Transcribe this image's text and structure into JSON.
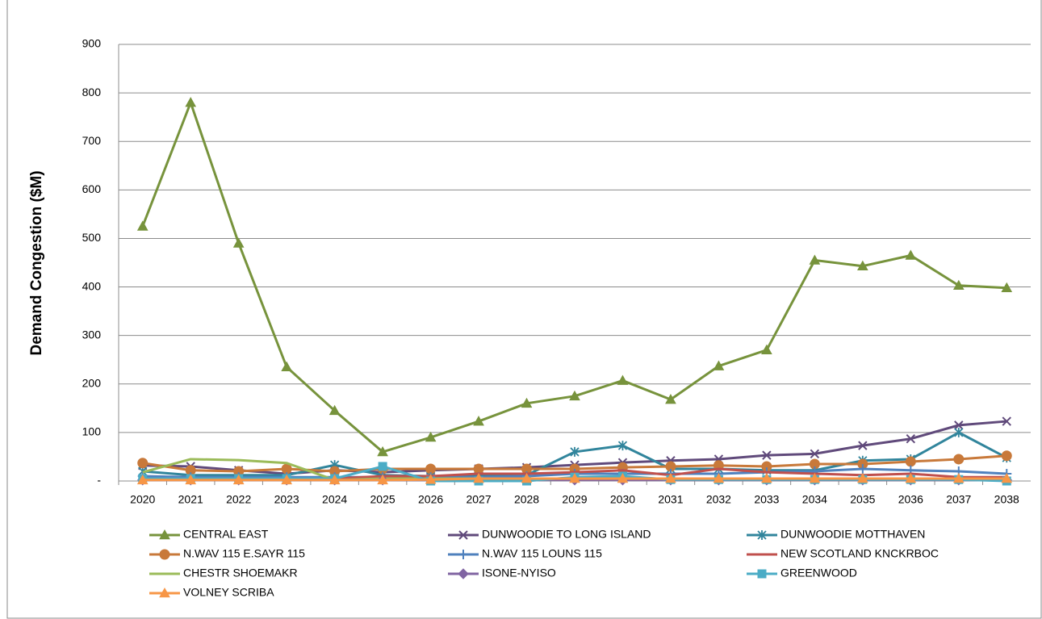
{
  "chart_data": {
    "type": "line",
    "y_label": "Demand Congestion ($M)",
    "categories": [
      "2020",
      "2021",
      "2022",
      "2023",
      "2024",
      "2025",
      "2026",
      "2027",
      "2028",
      "2029",
      "2030",
      "2031",
      "2032",
      "2033",
      "2034",
      "2035",
      "2036",
      "2037",
      "2038"
    ],
    "ylim": [
      0,
      900
    ],
    "yticks": [
      {
        "value": 0,
        "label": "-"
      },
      100,
      200,
      300,
      400,
      500,
      600,
      700,
      800,
      900
    ],
    "grid": true,
    "legend": "bottom",
    "series": [
      {
        "name": "CENTRAL EAST",
        "color": "#77933c",
        "marker": "triangle",
        "values": [
          525,
          780,
          490,
          235,
          145,
          60,
          90,
          123,
          160,
          175,
          207,
          168,
          237,
          270,
          455,
          443,
          465,
          403,
          398
        ]
      },
      {
        "name": "DUNWOODIE TO LONG ISLAND",
        "color": "#604a7b",
        "marker": "x",
        "values": [
          32,
          30,
          22,
          15,
          22,
          18,
          22,
          25,
          28,
          33,
          38,
          42,
          45,
          53,
          56,
          73,
          87,
          115,
          123
        ]
      },
      {
        "name": "DUNWOODIE MOTTHAVEN",
        "color": "#31859c",
        "marker": "star",
        "values": [
          20,
          12,
          12,
          12,
          33,
          12,
          10,
          10,
          12,
          60,
          73,
          25,
          25,
          22,
          22,
          42,
          45,
          100,
          48
        ]
      },
      {
        "name": "N.WAV 115 E.SAYR  115",
        "color": "#c8793a",
        "marker": "circle",
        "values": [
          37,
          22,
          20,
          25,
          20,
          25,
          25,
          25,
          25,
          25,
          28,
          30,
          32,
          30,
          35,
          35,
          40,
          45,
          52
        ]
      },
      {
        "name": "N.WAV 115 LOUNS 115",
        "color": "#4f81bd",
        "marker": "plus",
        "values": [
          10,
          8,
          8,
          8,
          8,
          8,
          8,
          8,
          10,
          15,
          15,
          15,
          15,
          18,
          20,
          25,
          22,
          20,
          15
        ]
      },
      {
        "name": "NEW SCOTLAND KNCKRBOC",
        "color": "#c0504d",
        "marker": "none",
        "values": [
          5,
          5,
          5,
          5,
          5,
          10,
          10,
          15,
          15,
          18,
          22,
          12,
          25,
          18,
          15,
          12,
          15,
          8,
          8
        ]
      },
      {
        "name": "CHESTR SHOEMAKR",
        "color": "#9bbb59",
        "marker": "none",
        "values": [
          18,
          45,
          43,
          37,
          2,
          5,
          5,
          5,
          5,
          5,
          5,
          5,
          5,
          5,
          5,
          5,
          5,
          5,
          5
        ]
      },
      {
        "name": "ISONE-NYISO",
        "color": "#8064a2",
        "marker": "diamond",
        "values": [
          2,
          2,
          2,
          2,
          2,
          2,
          2,
          2,
          2,
          2,
          2,
          2,
          2,
          2,
          2,
          2,
          2,
          2,
          2
        ]
      },
      {
        "name": "GREENWOOD",
        "color": "#4bacc6",
        "marker": "square",
        "values": [
          5,
          5,
          5,
          5,
          5,
          30,
          0,
          0,
          0,
          8,
          10,
          3,
          3,
          3,
          3,
          3,
          3,
          3,
          0
        ]
      },
      {
        "name": "VOLNEY SCRIBA",
        "color": "#f79646",
        "marker": "triangle",
        "values": [
          2,
          2,
          2,
          2,
          2,
          2,
          3,
          5,
          5,
          5,
          5,
          5,
          5,
          5,
          5,
          5,
          5,
          5,
          5
        ]
      }
    ]
  }
}
